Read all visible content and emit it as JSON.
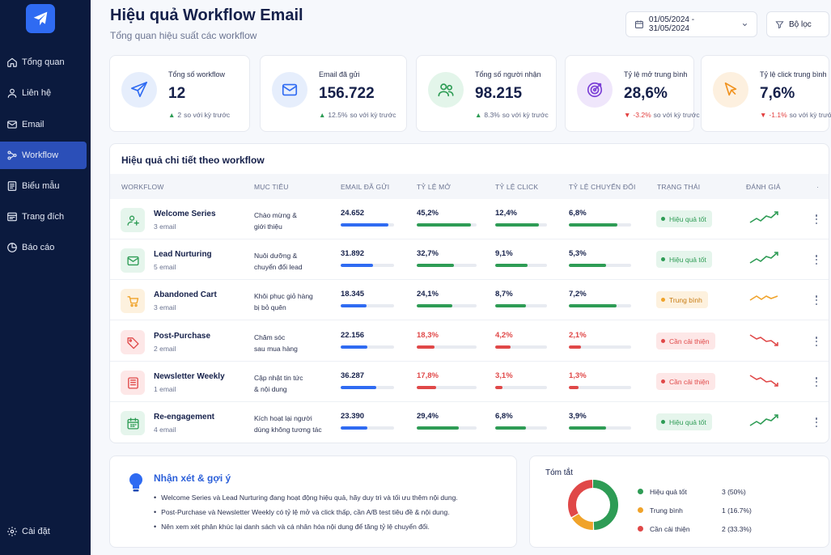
{
  "sidebar": {
    "items": [
      {
        "label": "Tổng quan",
        "icon": "home-icon"
      },
      {
        "label": "Liên hệ",
        "icon": "user-icon"
      },
      {
        "label": "Email",
        "icon": "mail-icon"
      },
      {
        "label": "Workflow",
        "icon": "workflow-icon",
        "active": true
      },
      {
        "label": "Biểu mẫu",
        "icon": "form-icon"
      },
      {
        "label": "Trang đích",
        "icon": "landing-page-icon"
      },
      {
        "label": "Báo cáo",
        "icon": "report-icon"
      }
    ],
    "settings_label": "Cài đặt"
  },
  "header": {
    "title": "Hiệu quả Workflow Email",
    "subtitle": "Tổng quan hiệu suất các workflow",
    "date_range": "01/05/2024 - 31/05/2024",
    "filter_label": "Bộ lọc"
  },
  "kpis": [
    {
      "label": "Tổng số workflow",
      "value": "12",
      "delta": "2",
      "delta_dir": "up",
      "delta_suffix": "so với kỳ trước",
      "icon": "send-icon",
      "color": "#2f6bf2",
      "bg": "#e6eefc"
    },
    {
      "label": "Email đã gửi",
      "value": "156.722",
      "delta": "12.5%",
      "delta_dir": "up",
      "delta_suffix": "so với kỳ trước",
      "icon": "mail-icon",
      "color": "#2f6bf2",
      "bg": "#e6eefc"
    },
    {
      "label": "Tổng số người nhận",
      "value": "98.215",
      "delta": "8.3%",
      "delta_dir": "up",
      "delta_suffix": "so với kỳ trước",
      "icon": "users-icon",
      "color": "#2e9c55",
      "bg": "#e3f5ea"
    },
    {
      "label": "Tỷ lệ mở trung bình",
      "value": "28,6%",
      "delta": "-3.2%",
      "delta_dir": "down",
      "delta_suffix": "so với kỳ trước",
      "icon": "target-icon",
      "color": "#7b3fd6",
      "bg": "#efe6fb"
    },
    {
      "label": "Tỷ lệ click trung bình",
      "value": "7,6%",
      "delta": "-1.1%",
      "delta_dir": "down",
      "delta_suffix": "so với kỳ trước",
      "icon": "cursor-icon",
      "color": "#f0921f",
      "bg": "#fdf0df"
    }
  ],
  "table": {
    "title": "Hiệu quả chi tiết theo workflow",
    "headers": [
      "WORKFLOW",
      "MỤC TIÊU",
      "EMAIL ĐÃ GỬI",
      "TỶ LỆ MỞ",
      "TỶ LỆ CLICK",
      "TỶ LỆ CHUYỂN ĐỔI",
      "TRẠNG THÁI",
      "ĐÁNH GIÁ",
      "·"
    ],
    "rows": [
      {
        "name": "Welcome Series",
        "emails": "3 email",
        "goal1": "Chào mừng &",
        "goal2": "giới thiệu",
        "sent": "24.652",
        "sent_pct": 0.9,
        "open": "45,2%",
        "open_pct": 0.9,
        "click": "12,4%",
        "click_pct": 0.84,
        "conv": "6,8%",
        "conv_pct": 0.78,
        "status": "Hiệu quả tốt",
        "level": "good",
        "icon": "user-add-icon",
        "trend": "up"
      },
      {
        "name": "Lead Nurturing",
        "emails": "5 email",
        "goal1": "Nuôi dưỡng &",
        "goal2": "chuyển đổi lead",
        "sent": "31.892",
        "sent_pct": 0.6,
        "open": "32,7%",
        "open_pct": 0.62,
        "click": "9,1%",
        "click_pct": 0.62,
        "conv": "5,3%",
        "conv_pct": 0.6,
        "status": "Hiệu quả tốt",
        "level": "good",
        "icon": "mail-icon",
        "trend": "up"
      },
      {
        "name": "Abandoned Cart",
        "emails": "3 email",
        "goal1": "Khôi phục giỏ hàng",
        "goal2": "bị bỏ quên",
        "sent": "18.345",
        "sent_pct": 0.48,
        "open": "24,1%",
        "open_pct": 0.6,
        "click": "8,7%",
        "click_pct": 0.6,
        "conv": "7,2%",
        "conv_pct": 0.76,
        "status": "Trung bình",
        "level": "medium",
        "icon": "cart-icon",
        "trend": "flat"
      },
      {
        "name": "Post-Purchase",
        "emails": "2 email",
        "goal1": "Chăm sóc",
        "goal2": "sau mua hàng",
        "sent": "22.156",
        "sent_pct": 0.5,
        "open": "18,3%",
        "open_pct": 0.3,
        "click": "4,2%",
        "click_pct": 0.3,
        "conv": "2,1%",
        "conv_pct": 0.2,
        "status": "Cần cải thiện",
        "level": "poor",
        "icon": "tag-icon",
        "trend": "down"
      },
      {
        "name": "Newsletter Weekly",
        "emails": "1 email",
        "goal1": "Cập nhật tin tức",
        "goal2": "& nội dung",
        "sent": "36.287",
        "sent_pct": 0.67,
        "open": "17,8%",
        "open_pct": 0.33,
        "click": "3,1%",
        "click_pct": 0.14,
        "conv": "1,3%",
        "conv_pct": 0.16,
        "status": "Cần cải thiện",
        "level": "poor",
        "icon": "newspaper-icon",
        "trend": "down"
      },
      {
        "name": "Re-engagement",
        "emails": "4 email",
        "goal1": "Kích hoạt lại người",
        "goal2": "dùng không tương tác",
        "sent": "23.390",
        "sent_pct": 0.5,
        "open": "29,4%",
        "open_pct": 0.7,
        "click": "6,8%",
        "click_pct": 0.6,
        "conv": "3,9%",
        "conv_pct": 0.6,
        "status": "Hiệu quả tốt",
        "level": "good",
        "icon": "calendar-icon",
        "trend": "up"
      }
    ]
  },
  "insights": {
    "title": "Nhận xét & gợi ý",
    "items": [
      "Welcome Series và Lead Nurturing đang hoạt động hiệu quả, hãy duy trì và tối ưu thêm nội dung.",
      "Post-Purchase và Newsletter Weekly có tỷ lệ mở và click thấp, cần A/B test tiêu đề & nội dung.",
      "Nên xem xét phân khúc lại danh sách và cá nhân hóa nội dung để tăng tỷ lệ chuyển đổi."
    ]
  },
  "summary": {
    "title": "Tóm tắt",
    "items": [
      {
        "label": "Hiệu quả tốt",
        "value": "3 (50%)",
        "count": 3,
        "color": "#2e9c55"
      },
      {
        "label": "Trung bình",
        "value": "1 (16.7%)",
        "count": 1,
        "color": "#f0a32a"
      },
      {
        "label": "Cần cải thiện",
        "value": "2 (33.3%)",
        "count": 2,
        "color": "#e04848"
      }
    ]
  },
  "colors": {
    "good": "#2e9c55",
    "good_bg": "#e5f5ec",
    "medium": "#f0a32a",
    "medium_bg": "#fdf1de",
    "poor": "#e04848",
    "poor_bg": "#fde7e7",
    "primary_bar": "#2f6bf2"
  }
}
